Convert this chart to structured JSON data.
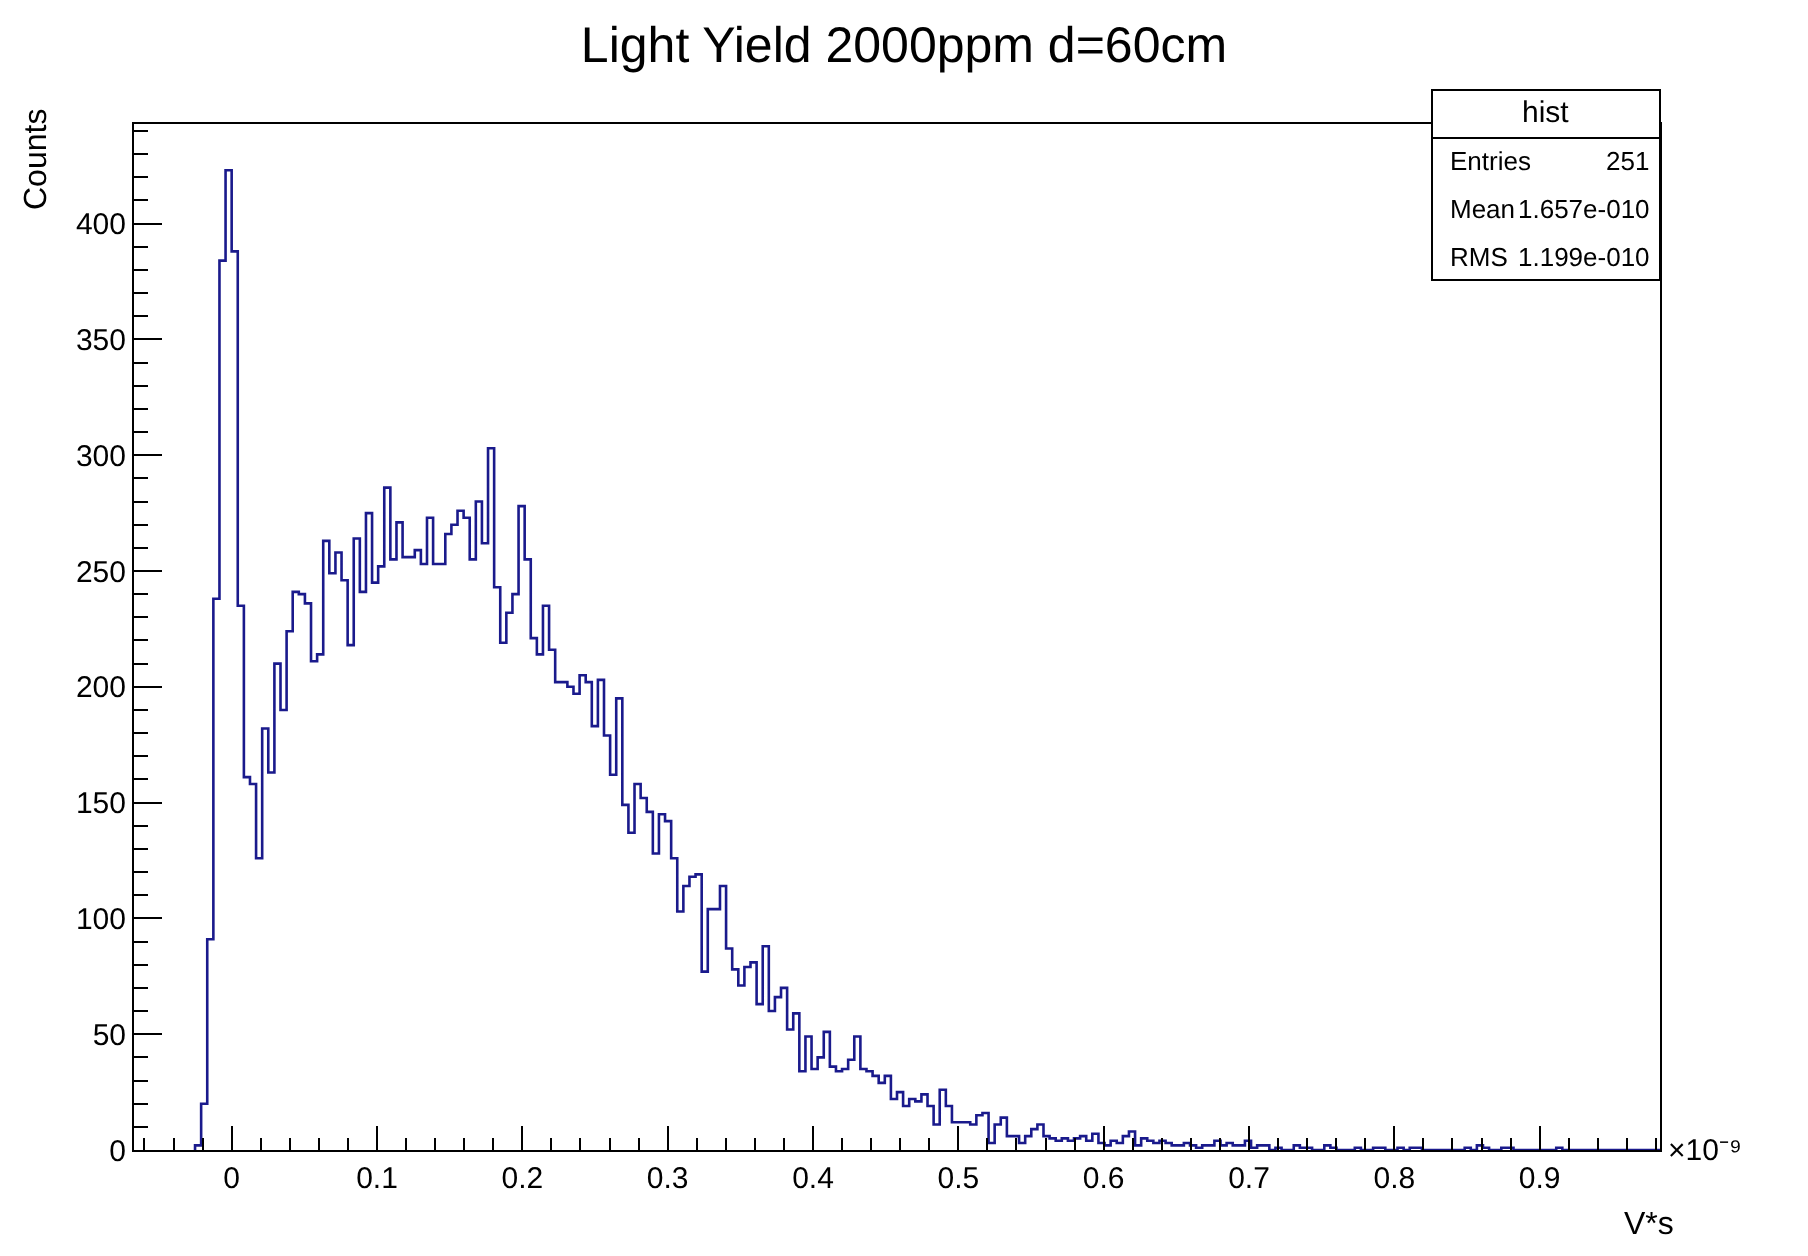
{
  "chart_data": {
    "type": "histogram",
    "title": "Light Yield 2000ppm d=60cm",
    "xlabel": "V*s",
    "ylabel": "Counts",
    "color": "#1a1a8c",
    "bins": [
      -0.0252,
      -0.021,
      -0.0168,
      -0.0126,
      -0.0084,
      -0.0042,
      0,
      0.0042,
      0.0084,
      0.0126,
      0.0168,
      0.021,
      0.0252,
      0.0294,
      0.0336,
      0.0378,
      0.042,
      0.0462,
      0.0504,
      0.0546,
      0.0588,
      0.063,
      0.0672,
      0.0714,
      0.0756,
      0.0798,
      0.084,
      0.0882,
      0.0924,
      0.0966,
      0.1008,
      0.105,
      0.1092,
      0.1134,
      0.1176,
      0.1218,
      0.126,
      0.1302,
      0.1344,
      0.1386,
      0.1428,
      0.147,
      0.1512,
      0.1554,
      0.1596,
      0.1638,
      0.168,
      0.1722,
      0.1764,
      0.1806,
      0.1848,
      0.189,
      0.1932,
      0.1974,
      0.2016,
      0.2058,
      0.21,
      0.2142,
      0.2184,
      0.2226,
      0.2268,
      0.231,
      0.2352,
      0.2394,
      0.2436,
      0.2478,
      0.252,
      0.2562,
      0.2604,
      0.2646,
      0.2688,
      0.273,
      0.2772,
      0.2814,
      0.2856,
      0.2898,
      0.294,
      0.2982,
      0.3024,
      0.3066,
      0.3108,
      0.315,
      0.3192,
      0.3234,
      0.3276,
      0.3318,
      0.336,
      0.3402,
      0.3444,
      0.3486,
      0.3528,
      0.357,
      0.3612,
      0.3654,
      0.3696,
      0.3738,
      0.378,
      0.3822,
      0.3864,
      0.3906,
      0.3948,
      0.399,
      0.4032,
      0.4074,
      0.4116,
      0.4158,
      0.42,
      0.4242,
      0.4284,
      0.4326,
      0.4368,
      0.441,
      0.4452,
      0.4494,
      0.4536,
      0.4578,
      0.462,
      0.4662,
      0.4704,
      0.4746,
      0.4788,
      0.483,
      0.4872,
      0.4914,
      0.4956,
      0.4998,
      0.504,
      0.5082,
      0.5124,
      0.5166,
      0.5208,
      0.525,
      0.5292,
      0.5334,
      0.5376,
      0.5418,
      0.546,
      0.5502,
      0.5544,
      0.5586,
      0.5628,
      0.567,
      0.5712,
      0.5754,
      0.5796,
      0.5838,
      0.588,
      0.5922,
      0.5964,
      0.6006,
      0.6048,
      0.609,
      0.6132,
      0.6174,
      0.6216,
      0.6258,
      0.63,
      0.6342,
      0.6384,
      0.6426,
      0.6468,
      0.651,
      0.6552,
      0.6594,
      0.6636,
      0.6678,
      0.672,
      0.6762,
      0.6804,
      0.6846,
      0.6888,
      0.693,
      0.6972,
      0.7014,
      0.7056,
      0.7098,
      0.714,
      0.7182,
      0.7224,
      0.7266,
      0.7308,
      0.735,
      0.7392,
      0.7434,
      0.7476,
      0.7518,
      0.756,
      0.7602,
      0.7644,
      0.7686,
      0.7728,
      0.777,
      0.7812,
      0.7854,
      0.7896,
      0.7938,
      0.798,
      0.8022,
      0.8064,
      0.8106,
      0.8148,
      0.819,
      0.8232,
      0.8274,
      0.8316,
      0.8358,
      0.84,
      0.8442,
      0.8484,
      0.8526,
      0.8568,
      0.861,
      0.8652,
      0.8694,
      0.8736,
      0.8778,
      0.882,
      0.8862,
      0.8904,
      0.8946,
      0.8988,
      0.903,
      0.9072,
      0.9114,
      0.9156,
      0.9198,
      0.924,
      0.9282,
      0.9324,
      0.9366,
      0.9408,
      0.945,
      0.9492,
      0.9534,
      0.9576,
      0.9618,
      0.966,
      0.9702,
      0.9744,
      0.9786,
      0.9828
    ],
    "values": [
      2,
      20,
      91,
      238,
      384,
      423,
      388,
      235,
      161,
      158,
      126,
      182,
      163,
      210,
      190,
      224,
      241,
      240,
      236,
      211,
      214,
      263,
      249,
      258,
      246,
      218,
      264,
      241,
      275,
      245,
      252,
      286,
      255,
      271,
      256,
      256,
      259,
      253,
      273,
      253,
      253,
      266,
      270,
      276,
      273,
      255,
      280,
      262,
      303,
      243,
      219,
      232,
      240,
      278,
      255,
      221,
      214,
      235,
      216,
      202,
      202,
      200,
      197,
      205,
      202,
      183,
      203,
      179,
      162,
      195,
      149,
      137,
      158,
      152,
      146,
      128,
      145,
      142,
      126,
      103,
      114,
      118,
      119,
      77,
      104,
      104,
      114,
      87,
      78,
      71,
      79,
      81,
      63,
      88,
      60,
      66,
      70,
      52,
      59,
      34,
      49,
      35,
      40,
      51,
      36,
      34,
      35,
      39,
      49,
      35,
      34,
      32,
      29,
      32,
      22,
      25,
      19,
      22,
      21,
      24,
      19,
      11,
      26,
      19,
      12,
      12,
      12,
      11,
      15,
      16,
      3,
      11,
      14,
      6,
      6,
      3,
      6,
      9,
      11,
      6,
      5,
      4,
      5,
      4,
      5,
      6,
      4,
      7,
      3,
      2,
      4,
      3,
      6,
      8,
      2,
      5,
      4,
      3,
      4,
      3,
      2,
      2,
      3,
      2,
      1,
      2,
      2,
      4,
      2,
      3,
      2,
      2,
      4,
      1,
      2,
      2,
      0,
      1,
      0,
      0,
      2,
      1,
      1,
      0,
      0,
      2,
      1,
      0,
      0,
      0,
      1,
      0,
      0,
      1,
      1,
      0,
      0,
      1,
      0,
      1,
      1,
      0,
      0,
      0,
      0,
      0,
      0,
      0,
      1,
      0,
      2,
      1,
      0,
      0,
      1,
      1,
      0,
      0,
      0,
      0,
      0,
      0,
      0,
      1,
      0,
      0,
      0,
      0,
      0,
      0,
      0,
      0,
      0,
      0,
      0,
      0,
      0,
      0,
      0,
      0
    ],
    "xlim": [
      -0.0672,
      0.9828
    ],
    "ylim": [
      0,
      443
    ],
    "xticks": [
      0,
      0.1,
      0.2,
      0.3,
      0.4,
      0.5,
      0.6,
      0.7,
      0.8,
      0.9
    ],
    "yticks": [
      0,
      50,
      100,
      150,
      200,
      250,
      300,
      350,
      400
    ],
    "annotations": [
      "×10⁻⁹",
      "hist",
      "Entries",
      "251",
      "Mean",
      "1.657e-010",
      "RMS",
      "1.199e-010"
    ]
  }
}
